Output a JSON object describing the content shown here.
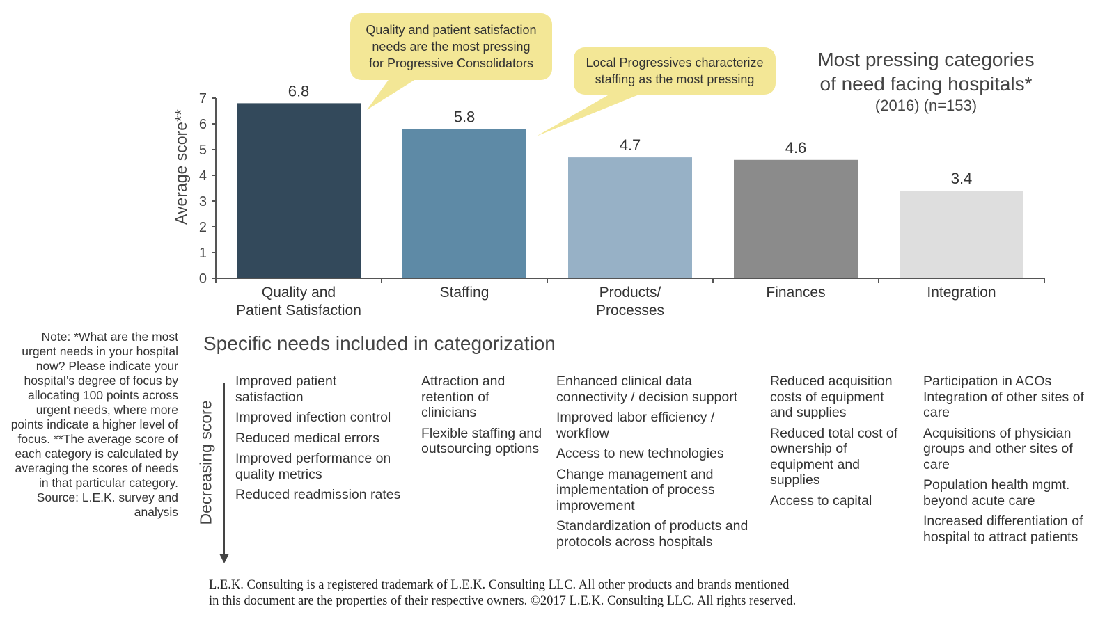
{
  "chart_data": {
    "type": "bar",
    "title": "Most pressing categories of need facing hospitals*",
    "subtitle": "(2016) (n=153)",
    "ylabel": "Average score**",
    "xlabel": "",
    "ylim": [
      0,
      7
    ],
    "yticks": [
      0,
      1,
      2,
      3,
      4,
      5,
      6,
      7
    ],
    "grid": false,
    "categories": [
      [
        "Quality and",
        "Patient Satisfaction"
      ],
      [
        "Staffing"
      ],
      [
        "Products/",
        "Processes"
      ],
      [
        "Finances"
      ],
      [
        "Integration"
      ]
    ],
    "values": [
      6.8,
      5.8,
      4.7,
      4.6,
      3.4
    ],
    "value_labels": [
      "6.8",
      "5.8",
      "4.7",
      "4.6",
      "3.4"
    ],
    "colors": [
      "#33495b",
      "#5e8aa6",
      "#97b1c6",
      "#8b8b8b",
      "#dedede"
    ],
    "annotations": [
      [
        "Quality and patient satisfaction",
        "needs are the most pressing",
        "for Progressive Consolidators"
      ],
      [
        "Local Progressives characterize",
        "staffing as the most pressing"
      ]
    ]
  },
  "callout_color": "#f3e796",
  "title_lines": [
    "Most pressing categories",
    "of need facing hospitals*"
  ],
  "subtitle": "(2016) (n=153)",
  "note": "Note: *What are the most urgent needs in your hospital now? Please indicate your hospital’s degree of focus by allocating 100 points across urgent needs, where more points indicate a higher level of focus. **The average score of each category is calculated by averaging the scores of needs in that particular category.  Source: L.E.K. survey and analysis",
  "needs_title": "Specific needs included in categorization",
  "decreasing_label": "Decreasing score",
  "needs_columns": [
    [
      "Improved patient satisfaction",
      "Improved infection control",
      "Reduced medical errors",
      "Improved performance on quality metrics",
      "Reduced readmission rates"
    ],
    [
      "Attraction and retention of clinicians",
      "Flexible staffing and outsourcing options"
    ],
    [
      "Enhanced clinical data connectivity / decision support",
      "Improved labor efficiency / workflow",
      "Access to new technologies",
      "Change management and implementation of process improvement",
      "Standardization of products and protocols across hospitals"
    ],
    [
      "Reduced acquisition costs of equipment and supplies",
      "Reduced total cost of ownership of equipment and supplies",
      "Access to capital"
    ],
    [
      "Participation in ACOs",
      "Integration of other sites of care",
      "Acquisitions of physician groups and other sites of care",
      "Population health mgmt. beyond acute care",
      "Increased differentiation of hospital to attract patients"
    ]
  ],
  "footer": [
    "L.E.K. Consulting is a registered trademark of L.E.K. Consulting LLC. All other products and brands mentioned",
    "in this document are the properties of their respective owners. ©2017 L.E.K. Consulting LLC. All rights reserved."
  ]
}
